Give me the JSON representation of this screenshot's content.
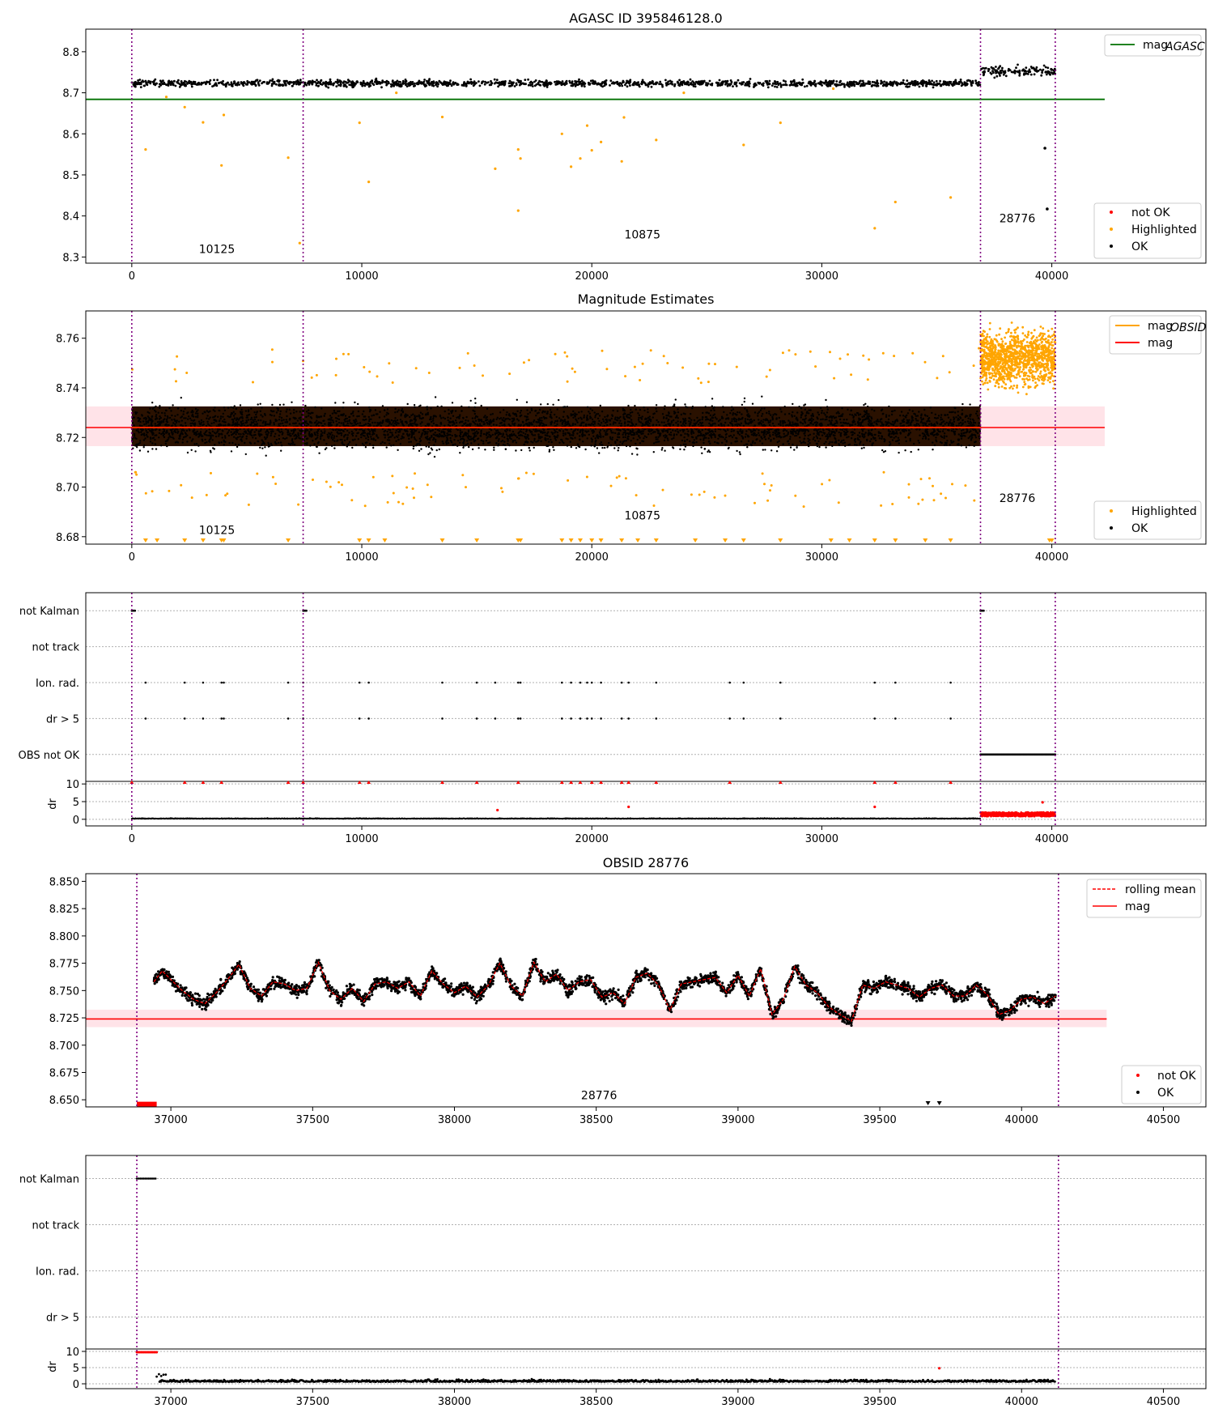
{
  "colors": {
    "ok": "#000000",
    "highlighted": "#ffa500",
    "not_ok": "#ff0000",
    "mag_agasc": "#007000",
    "mag_obsid": "#ffa500",
    "mag": "#ff0000",
    "rolling_mean": "#ff0000",
    "obs_boundary": "#800080",
    "band": "#ffc0cb"
  },
  "chart_data": [
    {
      "type": "scatter",
      "title": "AGASC ID 395846128.0",
      "xlim": [
        -2000,
        46700
      ],
      "ylim": [
        8.285,
        8.855
      ],
      "x_ticks": [
        0,
        10000,
        20000,
        30000,
        40000
      ],
      "y_ticks": [
        8.3,
        8.4,
        8.5,
        8.6,
        8.7,
        8.8
      ],
      "y_tick_labels": [
        "8.3",
        "8.4",
        "8.5",
        "8.6",
        "8.7",
        "8.8"
      ],
      "obs_boundaries": [
        0,
        7450,
        36900,
        40150
      ],
      "obs_labels": [
        {
          "text": "10125",
          "x": 3700,
          "y": 8.31
        },
        {
          "text": "10875",
          "x": 22200,
          "y": 8.345
        },
        {
          "text": "28776",
          "x": 38500,
          "y": 8.385
        }
      ],
      "mag_agasc": 8.684,
      "legend_lines": [
        {
          "label_main": "mag",
          "label_sub": "AGASC",
          "color_key": "mag_agasc"
        }
      ],
      "legend_points": [
        {
          "label": "not OK",
          "color_key": "not_ok"
        },
        {
          "label": "Highlighted",
          "color_key": "highlighted"
        },
        {
          "label": "OK",
          "color_key": "ok"
        }
      ],
      "ok_bands": [
        {
          "x0": 0,
          "x1": 36900,
          "center": 8.723,
          "spread": 0.008
        },
        {
          "x0": 36900,
          "x1": 40150,
          "center": 8.752,
          "spread": 0.012
        }
      ],
      "highlighted_points": [
        [
          600,
          8.562
        ],
        [
          1500,
          8.69
        ],
        [
          2300,
          8.665
        ],
        [
          3100,
          8.628
        ],
        [
          3900,
          8.523
        ],
        [
          4000,
          8.646
        ],
        [
          6800,
          8.542
        ],
        [
          7300,
          8.334
        ],
        [
          9900,
          8.627
        ],
        [
          10300,
          8.483
        ],
        [
          13500,
          8.641
        ],
        [
          15800,
          8.515
        ],
        [
          16800,
          8.413
        ],
        [
          16900,
          8.54
        ],
        [
          16800,
          8.562
        ],
        [
          18700,
          8.6
        ],
        [
          19100,
          8.52
        ],
        [
          19500,
          8.54
        ],
        [
          19800,
          8.62
        ],
        [
          20000,
          8.56
        ],
        [
          20400,
          8.58
        ],
        [
          21300,
          8.533
        ],
        [
          21400,
          8.64
        ],
        [
          22800,
          8.585
        ],
        [
          26600,
          8.573
        ],
        [
          28200,
          8.627
        ],
        [
          32300,
          8.37
        ],
        [
          33200,
          8.434
        ],
        [
          35600,
          8.445
        ],
        [
          11500,
          8.7
        ],
        [
          24000,
          8.7
        ],
        [
          30500,
          8.71
        ]
      ],
      "ok_outliers": [
        [
          39700,
          8.565
        ],
        [
          39800,
          8.417
        ]
      ]
    },
    {
      "type": "scatter",
      "title": "Magnitude Estimates",
      "xlim": [
        -2000,
        46700
      ],
      "ylim": [
        8.677,
        8.771
      ],
      "x_ticks": [
        0,
        10000,
        20000,
        30000,
        40000
      ],
      "y_ticks": [
        8.68,
        8.7,
        8.72,
        8.74,
        8.76
      ],
      "y_tick_labels": [
        "8.68",
        "8.70",
        "8.72",
        "8.74",
        "8.76"
      ],
      "obs_boundaries": [
        0,
        7450,
        36900,
        40150
      ],
      "obs_labels": [
        {
          "text": "10125",
          "x": 3700,
          "y": 8.681
        },
        {
          "text": "10875",
          "x": 22200,
          "y": 8.687
        },
        {
          "text": "28776",
          "x": 38500,
          "y": 8.694
        }
      ],
      "mag": 8.724,
      "mag_band": [
        8.7165,
        8.7325
      ],
      "mag_obsid": [
        {
          "x0": 0,
          "x1": 7450,
          "y": 8.724
        },
        {
          "x0": 7450,
          "x1": 36900,
          "y": 8.724
        }
      ],
      "legend_lines": [
        {
          "label_main": "mag",
          "label_sub": "OBSID",
          "color_key": "mag_obsid"
        },
        {
          "label_main": "mag",
          "label_sub": "",
          "color_key": "mag"
        }
      ],
      "legend_points": [
        {
          "label": "Highlighted",
          "color_key": "highlighted"
        },
        {
          "label": "OK",
          "color_key": "ok"
        }
      ],
      "ok_bands": [
        {
          "x0": 0,
          "x1": 36900,
          "center": 8.724,
          "spread": 0.0085
        }
      ],
      "highlighted_band": {
        "x0": 36900,
        "x1": 40150,
        "center": 8.752,
        "spread": 0.011
      },
      "lower_markers": [
        600,
        1100,
        2300,
        3100,
        3900,
        4000,
        6800,
        9900,
        10300,
        11000,
        13500,
        15000,
        16800,
        16900,
        18700,
        19100,
        19500,
        20000,
        20400,
        21300,
        22000,
        22800,
        24500,
        25800,
        26600,
        28200,
        30400,
        31200,
        32300,
        33200,
        34500,
        35600,
        39900,
        40000
      ]
    },
    {
      "type": "scatter",
      "title": "",
      "xlim": [
        -2000,
        46700
      ],
      "x_ticks": [
        0,
        10000,
        20000,
        30000,
        40000
      ],
      "flag_labels": [
        "not Kalman",
        "not track",
        "Ion. rad.",
        "dr > 5",
        "OBS not OK"
      ],
      "dr_label": "dr",
      "dr_ylim": [
        -0.5,
        10.5
      ],
      "dr_ticks": [
        0,
        5,
        10
      ],
      "dr_tick_labels": [
        "0",
        "5",
        "10"
      ],
      "obs_boundaries": [
        0,
        7450,
        36900,
        40150
      ],
      "not_kalman_x": [
        0,
        7450,
        36900
      ],
      "ion_rad_x": [
        600,
        2300,
        3100,
        3900,
        4000,
        6800,
        7450,
        9900,
        10300,
        13500,
        15000,
        15800,
        16800,
        16900,
        18700,
        19100,
        19500,
        19800,
        20000,
        20400,
        21300,
        21600,
        22800,
        26000,
        26600,
        28200,
        32300,
        33200,
        35600
      ],
      "obs_not_ok_range": [
        36900,
        40150
      ],
      "dr_red_x": [
        0,
        2300,
        3100,
        3900,
        6800,
        7450,
        9900,
        10300,
        13500,
        15000,
        16800,
        18700,
        19100,
        19500,
        20000,
        20400,
        21300,
        21600,
        22800,
        26000,
        28200,
        32300,
        33200,
        35600
      ],
      "dr_spikes": [
        [
          15900,
          2.6
        ],
        [
          21600,
          3.5
        ],
        [
          32300,
          3.5
        ],
        [
          39600,
          4.8
        ]
      ]
    },
    {
      "type": "line",
      "title": "OBSID 28776",
      "xlim": [
        36700,
        40650
      ],
      "ylim": [
        8.6435,
        8.857
      ],
      "x_ticks": [
        37000,
        37500,
        38000,
        38500,
        39000,
        39500,
        40000,
        40500
      ],
      "y_ticks": [
        8.65,
        8.675,
        8.7,
        8.725,
        8.75,
        8.775,
        8.8,
        8.825,
        8.85
      ],
      "y_tick_labels": [
        "8.650",
        "8.675",
        "8.700",
        "8.725",
        "8.750",
        "8.775",
        "8.800",
        "8.825",
        "8.850"
      ],
      "obs_boundaries": [
        36880,
        40130
      ],
      "obs_labels": [
        {
          "text": "28776",
          "x": 38510,
          "y": 8.6505
        }
      ],
      "mag": 8.724,
      "mag_band": [
        8.7165,
        8.7325
      ],
      "mag_line_xrange": [
        36700,
        40300
      ],
      "legend_lines": [
        {
          "label": "rolling mean",
          "color_key": "rolling_mean",
          "dashed": true
        },
        {
          "label": "mag",
          "color_key": "mag",
          "dashed": false
        }
      ],
      "legend_points": [
        {
          "label": "not OK",
          "color_key": "not_ok"
        },
        {
          "label": "OK",
          "color_key": "ok"
        }
      ],
      "not_ok_range": [
        36880,
        36950
      ],
      "not_ok_y": 8.646,
      "lower_markers": [
        39670,
        39710
      ],
      "rolling_mean": {
        "x": [
          36940,
          36970,
          37000,
          37040,
          37080,
          37120,
          37160,
          37200,
          37240,
          37280,
          37320,
          37360,
          37400,
          37440,
          37480,
          37520,
          37560,
          37600,
          37640,
          37680,
          37720,
          37760,
          37800,
          37840,
          37880,
          37920,
          37960,
          38000,
          38040,
          38080,
          38120,
          38160,
          38200,
          38240,
          38280,
          38320,
          38360,
          38400,
          38440,
          38480,
          38520,
          38560,
          38600,
          38640,
          38680,
          38720,
          38760,
          38800,
          38840,
          38880,
          38920,
          38960,
          39000,
          39040,
          39080,
          39120,
          39160,
          39200,
          39240,
          39280,
          39320,
          39360,
          39400,
          39440,
          39480,
          39520,
          39560,
          39600,
          39640,
          39680,
          39720,
          39760,
          39800,
          39840,
          39880,
          39920,
          39960,
          40000,
          40040,
          40080,
          40120
        ],
        "y": [
          8.758,
          8.768,
          8.76,
          8.75,
          8.742,
          8.738,
          8.748,
          8.76,
          8.774,
          8.752,
          8.745,
          8.758,
          8.756,
          8.75,
          8.752,
          8.776,
          8.75,
          8.742,
          8.752,
          8.74,
          8.756,
          8.758,
          8.752,
          8.758,
          8.745,
          8.768,
          8.756,
          8.748,
          8.754,
          8.744,
          8.755,
          8.775,
          8.754,
          8.745,
          8.776,
          8.758,
          8.765,
          8.75,
          8.758,
          8.76,
          8.744,
          8.748,
          8.738,
          8.762,
          8.766,
          8.755,
          8.732,
          8.756,
          8.758,
          8.76,
          8.762,
          8.748,
          8.764,
          8.745,
          8.77,
          8.728,
          8.742,
          8.772,
          8.755,
          8.748,
          8.735,
          8.728,
          8.722,
          8.755,
          8.752,
          8.758,
          8.755,
          8.752,
          8.744,
          8.752,
          8.755,
          8.745,
          8.745,
          8.755,
          8.746,
          8.728,
          8.732,
          8.742,
          8.744,
          8.738,
          8.745
        ]
      }
    },
    {
      "type": "scatter",
      "title": "",
      "xlim": [
        36700,
        40650
      ],
      "x_ticks": [
        37000,
        37500,
        38000,
        38500,
        39000,
        39500,
        40000,
        40500
      ],
      "flag_labels": [
        "not Kalman",
        "not track",
        "Ion. rad.",
        "dr > 5"
      ],
      "dr_label": "dr",
      "dr_ylim": [
        -0.5,
        10.5
      ],
      "dr_ticks": [
        0,
        5,
        10
      ],
      "dr_tick_labels": [
        "0",
        "5",
        "10"
      ],
      "obs_boundaries": [
        36880,
        40130
      ],
      "not_kalman_range": [
        36880,
        36950
      ],
      "dr_red_range": [
        36880,
        36950
      ],
      "dr_spikes": [
        [
          39710,
          4.8
        ]
      ]
    }
  ]
}
